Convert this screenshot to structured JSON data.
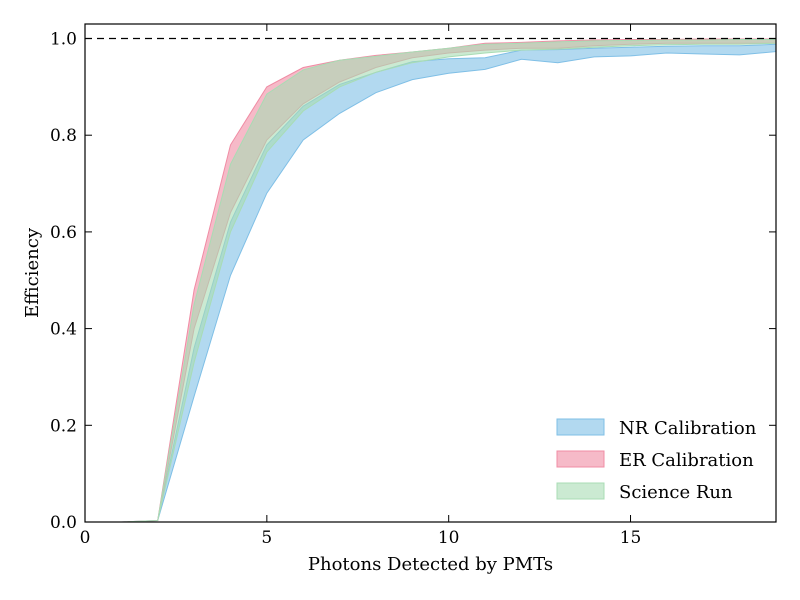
{
  "chart_data": {
    "type": "area",
    "title": "",
    "xlabel": "Photons Detected by PMTs",
    "ylabel": "Efficiency",
    "xlim": [
      0,
      19
    ],
    "ylim": [
      0,
      1.03
    ],
    "xticks": [
      0,
      5,
      10,
      15
    ],
    "yticks": [
      0.0,
      0.2,
      0.4,
      0.6,
      0.8,
      1.0
    ],
    "xtick_labels": [
      "0",
      "5",
      "10",
      "15"
    ],
    "ytick_labels": [
      "0.0",
      "0.2",
      "0.4",
      "0.6",
      "0.8",
      "1.0"
    ],
    "grid": false,
    "reference_line": {
      "y": 1.0,
      "style": "dashed"
    },
    "legend_position": "lower-right",
    "series": [
      {
        "name": "NR Calibration",
        "color": "#7fbfe6",
        "x": [
          1,
          2,
          3,
          4,
          5,
          6,
          7,
          8,
          9,
          10,
          11,
          12,
          13,
          14,
          15,
          16,
          17,
          18,
          19
        ],
        "lower": [
          0.0,
          0.003,
          0.26,
          0.51,
          0.68,
          0.79,
          0.845,
          0.888,
          0.915,
          0.928,
          0.936,
          0.957,
          0.95,
          0.962,
          0.964,
          0.97,
          0.968,
          0.966,
          0.973
        ],
        "upper": [
          0.0,
          0.003,
          0.36,
          0.62,
          0.78,
          0.86,
          0.905,
          0.93,
          0.952,
          0.958,
          0.96,
          0.976,
          0.977,
          0.98,
          0.982,
          0.984,
          0.985,
          0.985,
          0.988
        ]
      },
      {
        "name": "ER Calibration",
        "color": "#f08ca4",
        "x": [
          1,
          2,
          3,
          4,
          5,
          6,
          7,
          8,
          9,
          10,
          11,
          12,
          13,
          14,
          15,
          16,
          17,
          18,
          19
        ],
        "lower": [
          0.0,
          0.003,
          0.4,
          0.64,
          0.79,
          0.865,
          0.91,
          0.94,
          0.96,
          0.97,
          0.976,
          0.98,
          0.98,
          0.985,
          0.988,
          0.99,
          0.99,
          0.99,
          0.99
        ],
        "upper": [
          0.0,
          0.003,
          0.48,
          0.78,
          0.9,
          0.94,
          0.955,
          0.965,
          0.972,
          0.98,
          0.99,
          0.992,
          0.995,
          0.997,
          0.998,
          0.998,
          0.999,
          0.999,
          0.999
        ]
      },
      {
        "name": "Science Run",
        "color": "#a8dcb4",
        "x": [
          1,
          2,
          3,
          4,
          5,
          6,
          7,
          8,
          9,
          10,
          11,
          12,
          13,
          14,
          15,
          16,
          17,
          18,
          19
        ],
        "lower": [
          0.0,
          0.003,
          0.33,
          0.6,
          0.765,
          0.85,
          0.9,
          0.93,
          0.95,
          0.962,
          0.97,
          0.976,
          0.978,
          0.982,
          0.985,
          0.987,
          0.988,
          0.988,
          0.99
        ],
        "upper": [
          0.0,
          0.003,
          0.45,
          0.74,
          0.885,
          0.935,
          0.955,
          0.963,
          0.972,
          0.98,
          0.988,
          0.99,
          0.993,
          0.995,
          0.996,
          0.997,
          0.997,
          0.998,
          0.998
        ]
      }
    ]
  }
}
